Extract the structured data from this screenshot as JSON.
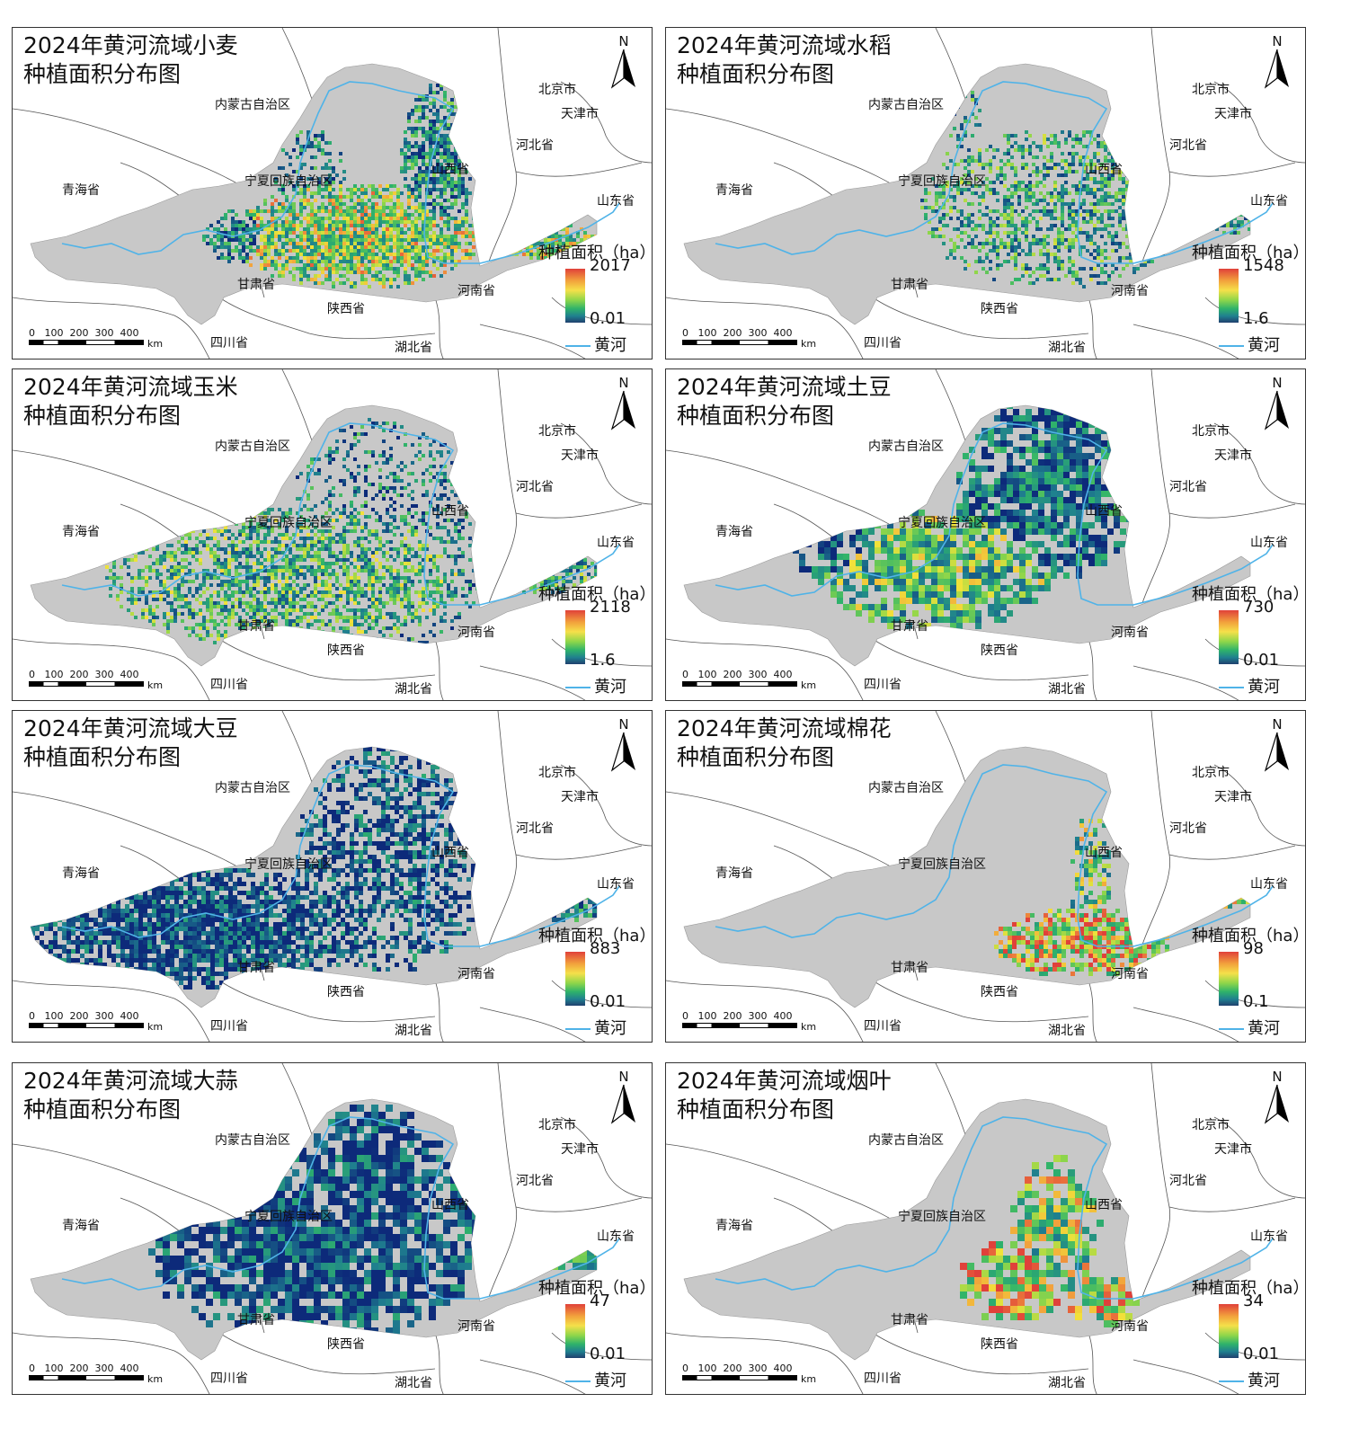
{
  "panels": [
    {
      "id": "wheat",
      "title_line1": "2024年黄河流域小麦",
      "title_line2": "种植面积分布图",
      "legend_title": "种植面积（ha）",
      "legend_max": "2017",
      "legend_min": "0.01",
      "pattern": "wheat"
    },
    {
      "id": "rice",
      "title_line1": "2024年黄河流域水稻",
      "title_line2": "种植面积分布图",
      "legend_title": "种植面积（ha）",
      "legend_max": "1548",
      "legend_min": "1.6",
      "pattern": "rice"
    },
    {
      "id": "corn",
      "title_line1": "2024年黄河流域玉米",
      "title_line2": "种植面积分布图",
      "legend_title": "种植面积（ha）",
      "legend_max": "2118",
      "legend_min": "1.6",
      "pattern": "corn"
    },
    {
      "id": "potato",
      "title_line1": "2024年黄河流域土豆",
      "title_line2": "种植面积分布图",
      "legend_title": "种植面积（ha）",
      "legend_max": "730",
      "legend_min": "0.01",
      "pattern": "potato"
    },
    {
      "id": "soybean",
      "title_line1": "2024年黄河流域大豆",
      "title_line2": "种植面积分布图",
      "legend_title": "种植面积（ha）",
      "legend_max": "883",
      "legend_min": "0.01",
      "pattern": "soybean"
    },
    {
      "id": "cotton",
      "title_line1": "2024年黄河流域棉花",
      "title_line2": "种植面积分布图",
      "legend_title": "种植面积（ha）",
      "legend_max": "98",
      "legend_min": "0.1",
      "pattern": "cotton"
    },
    {
      "id": "garlic",
      "title_line1": "2024年黄河流域大蒜",
      "title_line2": "种植面积分布图",
      "legend_title": "种植面积（ha）",
      "legend_max": "47",
      "legend_min": "0.01",
      "pattern": "garlic"
    },
    {
      "id": "tobacco",
      "title_line1": "2024年黄河流域烟叶",
      "title_line2": "种植面积分布图",
      "legend_title": "种植面积（ha）",
      "legend_max": "34",
      "legend_min": "0.01",
      "pattern": "tobacco"
    }
  ],
  "common": {
    "north_letter": "N",
    "river_legend": "黄河",
    "scale_ticks": "0   100  200  300  400",
    "scale_unit": "km",
    "provinces": {
      "inner_mongolia": "内蒙古自治区",
      "beijing": "北京市",
      "tianjin": "天津市",
      "hebei": "河北省",
      "shanxi": "山西省",
      "ningxia": "宁夏回族自治区",
      "qinghai": "青海省",
      "shandong": "山东省",
      "gansu": "甘肃省",
      "henan": "河南省",
      "shaanxi": "陕西省",
      "sichuan": "四川省",
      "hubei": "湖北省"
    }
  },
  "colors": {
    "basin_gray": "#c8c8c8",
    "low": "#0d2a7a",
    "mid": "#2fb36a",
    "high_yellow": "#f2e23a",
    "high_red": "#e0413a",
    "river": "#4fb3e8",
    "border": "#555555"
  }
}
